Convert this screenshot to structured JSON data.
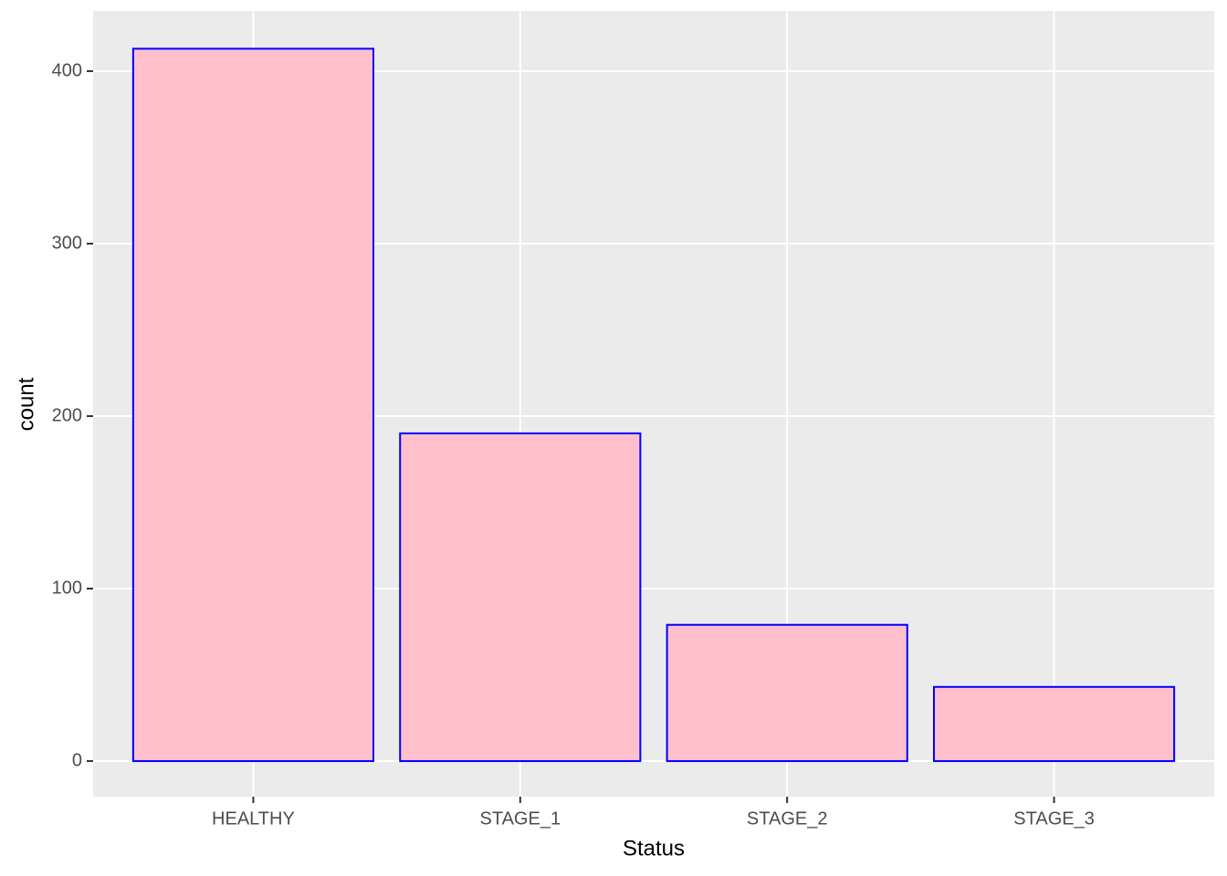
{
  "chart_data": {
    "type": "bar",
    "x_label": "Status",
    "y_label": "count",
    "categories": [
      "HEALTHY",
      "STAGE_1",
      "STAGE_2",
      "STAGE_3"
    ],
    "values": [
      413,
      190,
      79,
      43
    ],
    "color": "#ffc0cb",
    "edge_color": "#0000ff",
    "ylim": [
      -20.6,
      434.9
    ],
    "yticks": [
      0,
      100,
      200,
      300,
      400
    ],
    "grid": true
  }
}
